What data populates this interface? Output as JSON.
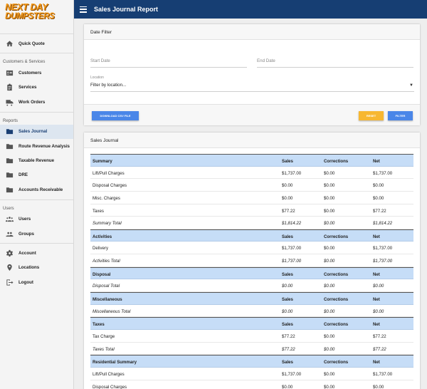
{
  "logo": {
    "line1": "NEXT DAY",
    "line2": "DUMPSTERS"
  },
  "sidebar": {
    "quick_quote": "Quick Quote",
    "sections": {
      "customers_services": "Customers & Services",
      "reports": "Reports",
      "users": "Users"
    },
    "items": {
      "customers": "Customers",
      "services": "Services",
      "work_orders": "Work Orders",
      "sales_journal": "Sales Journal",
      "route_revenue": "Route Revenue Analysis",
      "taxable_revenue": "Taxable Revenue",
      "dre": "DRE",
      "accounts_receivable": "Accounts Receivable",
      "users": "Users",
      "groups": "Groups",
      "account": "Account",
      "locations": "Locations",
      "logout": "Logout"
    }
  },
  "topbar": {
    "title": "Sales Journal Report"
  },
  "date_filter": {
    "title": "Date Filter",
    "start_placeholder": "Start Date",
    "end_placeholder": "End Date",
    "location_label": "Location",
    "location_value": "Filter by location...",
    "download_label": "DOWNLOAD CSV FILE",
    "reset_label": "RESET",
    "filter_label": "FILTER"
  },
  "journal": {
    "title": "Sales Journal",
    "rows": [
      {
        "kind": "head",
        "cells": [
          "Summary",
          "Sales",
          "Corrections",
          "Net"
        ]
      },
      {
        "kind": "row",
        "cells": [
          "Lift/Pull Charges",
          "$1,737.00",
          "$0.00",
          "$1,737.00"
        ]
      },
      {
        "kind": "row",
        "cells": [
          "Disposal Charges",
          "$0.00",
          "$0.00",
          "$0.00"
        ]
      },
      {
        "kind": "row",
        "cells": [
          "Misc. Charges",
          "$0.00",
          "$0.00",
          "$0.00"
        ]
      },
      {
        "kind": "row",
        "cells": [
          "Taxes",
          "$77.22",
          "$0.00",
          "$77.22"
        ]
      },
      {
        "kind": "total",
        "cells": [
          "Summary Total",
          "$1,814.22",
          "$0.00",
          "$1,814.22"
        ]
      },
      {
        "kind": "head",
        "cells": [
          "Activities",
          "Sales",
          "Corrections",
          "Net"
        ]
      },
      {
        "kind": "row",
        "cells": [
          "Delivery",
          "$1,737.00",
          "$0.00",
          "$1,737.00"
        ]
      },
      {
        "kind": "total",
        "cells": [
          "Activities Total",
          "$1,737.00",
          "$0.00",
          "$1,737.00"
        ]
      },
      {
        "kind": "head",
        "cells": [
          "Disposal",
          "Sales",
          "Corrections",
          "Net"
        ]
      },
      {
        "kind": "total",
        "cells": [
          "Disposal Total",
          "$0.00",
          "$0.00",
          "$0.00"
        ]
      },
      {
        "kind": "head",
        "cells": [
          "Miscellaneous",
          "Sales",
          "Corrections",
          "Net"
        ]
      },
      {
        "kind": "total",
        "cells": [
          "Miscellaneous Total",
          "$0.00",
          "$0.00",
          "$0.00"
        ]
      },
      {
        "kind": "head",
        "cells": [
          "Taxes",
          "Sales",
          "Corrections",
          "Net"
        ]
      },
      {
        "kind": "row",
        "cells": [
          "Tax Charge",
          "$77.22",
          "$0.00",
          "$77.22"
        ]
      },
      {
        "kind": "total",
        "cells": [
          "Taxes Total",
          "$77.22",
          "$0.00",
          "$77.22"
        ]
      },
      {
        "kind": "head",
        "cells": [
          "Residential Summary",
          "Sales",
          "Corrections",
          "Net"
        ]
      },
      {
        "kind": "row",
        "cells": [
          "Lift/Pull Charges",
          "$1,737.00",
          "$0.00",
          "$1,737.00"
        ]
      },
      {
        "kind": "row",
        "cells": [
          "Disposal Charges",
          "$0.00",
          "$0.00",
          "$0.00"
        ]
      }
    ]
  },
  "colors": {
    "topbar": "#163e73",
    "accent_blue": "#4a86e8",
    "reset_yellow": "#f7b731",
    "section_header": "#c6ddf7",
    "logo_orange": "#f39a1c"
  }
}
